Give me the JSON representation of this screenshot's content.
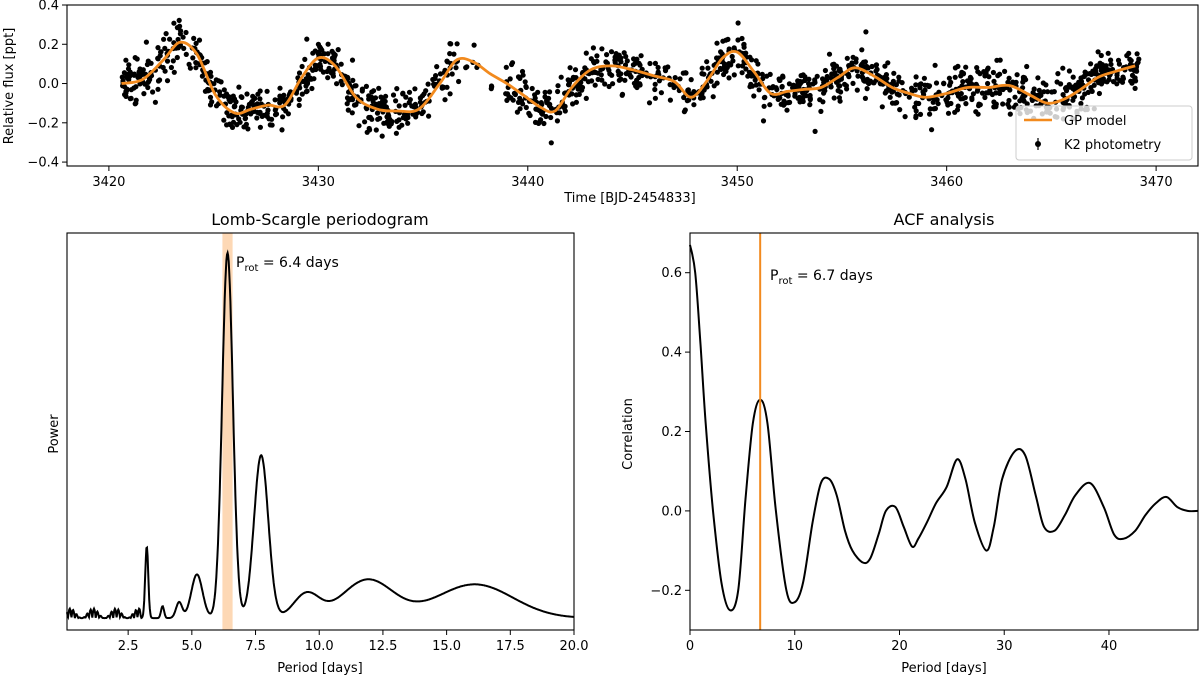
{
  "colors": {
    "model": "#f28a1e",
    "points": "#000000",
    "band": "#fdd8b5"
  },
  "chart_data": [
    {
      "id": "lc",
      "type": "scatter",
      "title": "",
      "xlabel": "Time [BJD-2454833]",
      "ylabel": "Relative flux [ppt]",
      "xlim": [
        3418,
        3472
      ],
      "ylim": [
        -0.42,
        0.4
      ],
      "xticks": [
        3420,
        3430,
        3440,
        3450,
        3460,
        3470
      ],
      "yticks": [
        -0.4,
        -0.2,
        0.0,
        0.2,
        0.4
      ],
      "ytick_labels": [
        "−0.4",
        "−0.2",
        "0.0",
        "0.2",
        "0.4"
      ],
      "legend": {
        "position": "bottom-right",
        "entries": [
          "GP model",
          "K2 photometry"
        ]
      },
      "series": [
        {
          "name": "GP model",
          "kind": "line",
          "x": [
            3420.6,
            3421.6,
            3422.6,
            3423.4,
            3424.2,
            3425.1,
            3426.0,
            3426.8,
            3427.6,
            3428.4,
            3429.2,
            3430.0,
            3430.8,
            3431.8,
            3432.8,
            3433.8,
            3434.8,
            3435.8,
            3436.6,
            3437.4,
            3438.2,
            3439.0,
            3439.8,
            3440.6,
            3441.3,
            3442.1,
            3443.0,
            3444.0,
            3445.0,
            3446.0,
            3447.0,
            3447.8,
            3448.6,
            3449.3,
            3450.0,
            3450.8,
            3451.6,
            3452.4,
            3453.2,
            3454.0,
            3454.8,
            3455.6,
            3456.5,
            3457.4,
            3458.2,
            3459.0,
            3460.0,
            3461.0,
            3462.0,
            3463.0,
            3464.0,
            3464.8,
            3465.6,
            3466.4,
            3467.2,
            3468.0,
            3469.0
          ],
          "y": [
            0.0,
            0.02,
            0.12,
            0.21,
            0.15,
            -0.06,
            -0.15,
            -0.13,
            -0.11,
            -0.11,
            0.03,
            0.13,
            0.09,
            -0.07,
            -0.13,
            -0.14,
            -0.13,
            0.0,
            0.12,
            0.11,
            0.05,
            0.0,
            -0.06,
            -0.12,
            -0.14,
            -0.02,
            0.07,
            0.09,
            0.07,
            0.04,
            0.01,
            -0.07,
            0.02,
            0.13,
            0.16,
            0.06,
            -0.05,
            -0.04,
            -0.03,
            -0.02,
            0.03,
            0.08,
            0.04,
            -0.02,
            -0.05,
            -0.07,
            -0.05,
            -0.02,
            -0.02,
            -0.01,
            -0.06,
            -0.1,
            -0.08,
            -0.03,
            0.03,
            0.06,
            0.09
          ]
        },
        {
          "name": "K2 photometry",
          "kind": "points",
          "n_points": 1550,
          "time_range": [
            3420.6,
            3469.2
          ],
          "scatter_ppt": 0.055
        }
      ]
    },
    {
      "id": "ls",
      "type": "line",
      "title": "Lomb-Scargle periodogram",
      "xlabel": "Period [days]",
      "ylabel": "Power",
      "xlim": [
        0.1,
        20.0
      ],
      "ylim": [
        0.0,
        1.0
      ],
      "xticks": [
        2.5,
        5.0,
        7.5,
        10.0,
        12.5,
        15.0,
        17.5,
        20.0
      ],
      "xtick_labels": [
        "2.5",
        "5.0",
        "7.5",
        "10.0",
        "12.5",
        "15.0",
        "17.5",
        "20.0"
      ],
      "band": {
        "x0": 6.2,
        "x1": 6.6
      },
      "peak_period": 6.4,
      "annotation_prefix": "P",
      "annotation_sub": "rot",
      "annotation_value": " = 6.4 days",
      "series": [
        {
          "name": "power",
          "peaks": [
            [
              3.23,
              0.18,
              0.06
            ],
            [
              3.85,
              0.03,
              0.06
            ],
            [
              4.5,
              0.04,
              0.12
            ],
            [
              5.2,
              0.11,
              0.22
            ],
            [
              6.4,
              0.92,
              0.21
            ],
            [
              7.72,
              0.41,
              0.28
            ],
            [
              9.5,
              0.06,
              0.5
            ],
            [
              11.9,
              0.096,
              1.0
            ],
            [
              16.1,
              0.085,
              1.5
            ]
          ],
          "baseline": 0.03
        }
      ]
    },
    {
      "id": "acf",
      "type": "line",
      "title": "ACF analysis",
      "xlabel": "Period [days]",
      "ylabel": "Correlation",
      "xlim": [
        0,
        48.5
      ],
      "ylim": [
        -0.3,
        0.7
      ],
      "xticks": [
        0,
        10,
        20,
        30,
        40
      ],
      "yticks": [
        -0.2,
        0.0,
        0.2,
        0.4,
        0.6
      ],
      "ytick_labels": [
        "−0.2",
        "0.0",
        "0.2",
        "0.4",
        "0.6"
      ],
      "vline": 6.7,
      "annotation_prefix": "P",
      "annotation_sub": "rot",
      "annotation_value": " = 6.7 days",
      "series": [
        {
          "name": "correlation",
          "x": [
            0,
            0.5,
            1.0,
            1.5,
            2.2,
            3.0,
            3.8,
            4.6,
            5.3,
            6.0,
            6.7,
            7.4,
            8.2,
            9.2,
            10.0,
            10.8,
            11.7,
            12.5,
            13.3,
            14.0,
            14.8,
            15.5,
            16.5,
            17.2,
            18.0,
            18.7,
            19.6,
            20.4,
            21.2,
            21.8,
            22.6,
            23.5,
            24.5,
            25.5,
            26.3,
            27.2,
            28.3,
            29.0,
            29.8,
            31.0,
            32.0,
            33.0,
            33.8,
            34.8,
            35.8,
            36.8,
            38.2,
            39.5,
            40.5,
            41.4,
            42.5,
            43.5,
            44.5,
            45.5,
            46.5,
            47.5,
            48.5
          ],
          "y": [
            0.67,
            0.6,
            0.42,
            0.22,
            0.0,
            -0.18,
            -0.25,
            -0.2,
            0.03,
            0.22,
            0.28,
            0.22,
            0.0,
            -0.2,
            -0.23,
            -0.18,
            -0.03,
            0.07,
            0.08,
            0.04,
            -0.05,
            -0.1,
            -0.13,
            -0.12,
            -0.06,
            0.0,
            0.01,
            -0.04,
            -0.09,
            -0.07,
            -0.03,
            0.02,
            0.06,
            0.13,
            0.08,
            -0.03,
            -0.1,
            -0.04,
            0.08,
            0.15,
            0.14,
            0.04,
            -0.04,
            -0.05,
            -0.01,
            0.04,
            0.07,
            0.01,
            -0.06,
            -0.07,
            -0.05,
            -0.01,
            0.02,
            0.035,
            0.01,
            0.0,
            0.0
          ]
        }
      ]
    }
  ]
}
